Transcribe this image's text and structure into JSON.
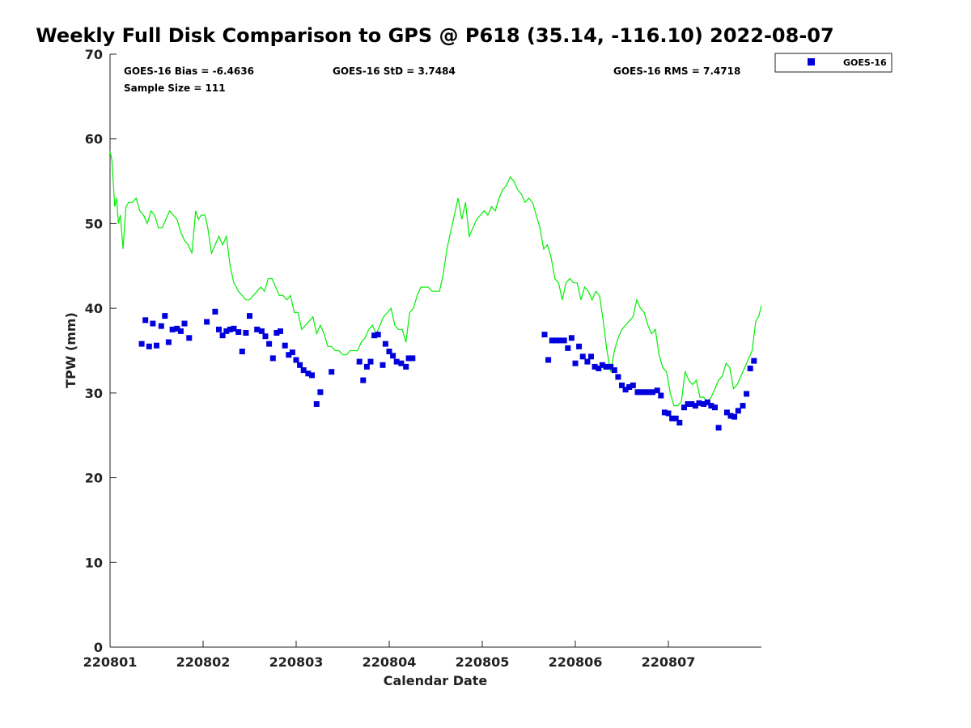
{
  "title": "Weekly Full Disk Comparison to GPS @ P618 (35.14, -116.10) 2022-08-07",
  "stats": {
    "bias": "GOES-16 Bias = -6.4636",
    "std": "GOES-16 StD = 3.7484",
    "rms": "GOES-16 RMS = 7.4718",
    "sample": "Sample Size = 111"
  },
  "legend": {
    "label": "GOES-16"
  },
  "colors": {
    "goes": "#0000dd",
    "gps": "#00ee00",
    "axis": "#222222"
  },
  "chart_data": {
    "type": "scatter",
    "xlabel": "Calendar Date",
    "ylabel": "TPW (mm)",
    "xlim": [
      0,
      7
    ],
    "ylim": [
      0,
      70
    ],
    "x_ticks": [
      {
        "value": 0,
        "label": "220801"
      },
      {
        "value": 1,
        "label": "220802"
      },
      {
        "value": 2,
        "label": "220803"
      },
      {
        "value": 3,
        "label": "220804"
      },
      {
        "value": 4,
        "label": "220805"
      },
      {
        "value": 5,
        "label": "220806"
      },
      {
        "value": 6,
        "label": "220807"
      }
    ],
    "y_ticks": [
      0,
      10,
      20,
      30,
      40,
      50,
      60,
      70
    ],
    "series": [
      {
        "name": "GOES-16",
        "marker": "square",
        "points": [
          [
            0.34,
            35.8
          ],
          [
            0.38,
            38.6
          ],
          [
            0.42,
            35.5
          ],
          [
            0.46,
            38.2
          ],
          [
            0.5,
            35.6
          ],
          [
            0.55,
            37.9
          ],
          [
            0.59,
            39.1
          ],
          [
            0.63,
            36.0
          ],
          [
            0.67,
            37.5
          ],
          [
            0.72,
            37.6
          ],
          [
            0.76,
            37.3
          ],
          [
            0.8,
            38.2
          ],
          [
            0.85,
            36.5
          ],
          [
            1.04,
            38.4
          ],
          [
            1.13,
            39.6
          ],
          [
            1.17,
            37.5
          ],
          [
            1.21,
            36.8
          ],
          [
            1.25,
            37.3
          ],
          [
            1.29,
            37.5
          ],
          [
            1.33,
            37.6
          ],
          [
            1.38,
            37.2
          ],
          [
            1.42,
            34.9
          ],
          [
            1.46,
            37.1
          ],
          [
            1.5,
            39.1
          ],
          [
            1.58,
            37.5
          ],
          [
            1.63,
            37.3
          ],
          [
            1.67,
            36.7
          ],
          [
            1.71,
            35.8
          ],
          [
            1.75,
            34.1
          ],
          [
            1.79,
            37.1
          ],
          [
            1.83,
            37.3
          ],
          [
            1.88,
            35.6
          ],
          [
            1.92,
            34.5
          ],
          [
            1.96,
            34.8
          ],
          [
            2.0,
            33.9
          ],
          [
            2.04,
            33.3
          ],
          [
            2.08,
            32.7
          ],
          [
            2.13,
            32.3
          ],
          [
            2.17,
            32.1
          ],
          [
            2.22,
            28.7
          ],
          [
            2.26,
            30.1
          ],
          [
            2.38,
            32.5
          ],
          [
            2.68,
            33.7
          ],
          [
            2.72,
            31.5
          ],
          [
            2.76,
            33.1
          ],
          [
            2.8,
            33.7
          ],
          [
            2.84,
            36.8
          ],
          [
            2.88,
            36.9
          ],
          [
            2.93,
            33.3
          ],
          [
            2.96,
            35.8
          ],
          [
            3.0,
            34.9
          ],
          [
            3.04,
            34.4
          ],
          [
            3.08,
            33.7
          ],
          [
            3.13,
            33.5
          ],
          [
            3.18,
            33.1
          ],
          [
            3.21,
            34.1
          ],
          [
            3.25,
            34.1
          ],
          [
            4.67,
            36.9
          ],
          [
            4.71,
            33.9
          ],
          [
            4.75,
            36.2
          ],
          [
            4.79,
            36.2
          ],
          [
            4.83,
            36.2
          ],
          [
            4.88,
            36.2
          ],
          [
            4.92,
            35.3
          ],
          [
            4.96,
            36.5
          ],
          [
            5.0,
            33.5
          ],
          [
            5.04,
            35.5
          ],
          [
            5.08,
            34.3
          ],
          [
            5.13,
            33.7
          ],
          [
            5.17,
            34.3
          ],
          [
            5.21,
            33.1
          ],
          [
            5.25,
            32.9
          ],
          [
            5.29,
            33.3
          ],
          [
            5.33,
            33.1
          ],
          [
            5.38,
            33.1
          ],
          [
            5.42,
            32.7
          ],
          [
            5.46,
            31.9
          ],
          [
            5.5,
            30.9
          ],
          [
            5.54,
            30.4
          ],
          [
            5.58,
            30.7
          ],
          [
            5.62,
            30.9
          ],
          [
            5.67,
            30.1
          ],
          [
            5.71,
            30.1
          ],
          [
            5.75,
            30.1
          ],
          [
            5.79,
            30.1
          ],
          [
            5.83,
            30.1
          ],
          [
            5.88,
            30.3
          ],
          [
            5.92,
            29.7
          ],
          [
            5.96,
            27.7
          ],
          [
            6.0,
            27.6
          ],
          [
            6.04,
            27.0
          ],
          [
            6.08,
            27.0
          ],
          [
            6.12,
            26.5
          ],
          [
            6.17,
            28.3
          ],
          [
            6.21,
            28.7
          ],
          [
            6.25,
            28.7
          ],
          [
            6.29,
            28.5
          ],
          [
            6.33,
            28.8
          ],
          [
            6.38,
            28.7
          ],
          [
            6.42,
            28.9
          ],
          [
            6.46,
            28.5
          ],
          [
            6.5,
            28.3
          ],
          [
            6.54,
            25.9
          ],
          [
            6.63,
            27.7
          ],
          [
            6.67,
            27.3
          ],
          [
            6.71,
            27.2
          ],
          [
            6.75,
            27.9
          ],
          [
            6.8,
            28.5
          ],
          [
            6.84,
            29.9
          ],
          [
            6.88,
            32.9
          ],
          [
            6.92,
            33.8
          ]
        ]
      },
      {
        "name": "GPS",
        "marker": "line",
        "points": [
          [
            0.0,
            58.5
          ],
          [
            0.02,
            57.5
          ],
          [
            0.05,
            52.0
          ],
          [
            0.07,
            53.0
          ],
          [
            0.09,
            50.0
          ],
          [
            0.11,
            51.0
          ],
          [
            0.14,
            47.0
          ],
          [
            0.17,
            52.0
          ],
          [
            0.2,
            52.5
          ],
          [
            0.24,
            52.5
          ],
          [
            0.28,
            53.0
          ],
          [
            0.32,
            51.5
          ],
          [
            0.36,
            51.0
          ],
          [
            0.4,
            50.0
          ],
          [
            0.44,
            51.5
          ],
          [
            0.48,
            51.0
          ],
          [
            0.52,
            49.5
          ],
          [
            0.56,
            49.5
          ],
          [
            0.6,
            50.5
          ],
          [
            0.64,
            51.5
          ],
          [
            0.68,
            51.0
          ],
          [
            0.72,
            50.5
          ],
          [
            0.76,
            49.0
          ],
          [
            0.8,
            48.0
          ],
          [
            0.84,
            47.5
          ],
          [
            0.88,
            46.5
          ],
          [
            0.92,
            51.5
          ],
          [
            0.95,
            50.5
          ],
          [
            0.98,
            51.0
          ],
          [
            1.02,
            51.0
          ],
          [
            1.05,
            49.5
          ],
          [
            1.09,
            46.5
          ],
          [
            1.13,
            47.5
          ],
          [
            1.17,
            48.5
          ],
          [
            1.21,
            47.5
          ],
          [
            1.25,
            48.5
          ],
          [
            1.29,
            45.0
          ],
          [
            1.33,
            43.0
          ],
          [
            1.38,
            42.0
          ],
          [
            1.42,
            41.5
          ],
          [
            1.46,
            41.0
          ],
          [
            1.5,
            41.0
          ],
          [
            1.54,
            41.5
          ],
          [
            1.58,
            42.0
          ],
          [
            1.62,
            42.5
          ],
          [
            1.66,
            42.0
          ],
          [
            1.7,
            43.5
          ],
          [
            1.74,
            43.5
          ],
          [
            1.78,
            42.5
          ],
          [
            1.82,
            41.5
          ],
          [
            1.86,
            41.5
          ],
          [
            1.9,
            41.0
          ],
          [
            1.94,
            41.5
          ],
          [
            1.98,
            39.5
          ],
          [
            2.02,
            39.5
          ],
          [
            2.06,
            37.5
          ],
          [
            2.1,
            38.0
          ],
          [
            2.14,
            38.5
          ],
          [
            2.18,
            39.0
          ],
          [
            2.22,
            37.0
          ],
          [
            2.26,
            38.0
          ],
          [
            2.3,
            37.0
          ],
          [
            2.34,
            35.5
          ],
          [
            2.38,
            35.5
          ],
          [
            2.42,
            35.0
          ],
          [
            2.46,
            35.0
          ],
          [
            2.5,
            34.5
          ],
          [
            2.54,
            34.5
          ],
          [
            2.58,
            35.0
          ],
          [
            2.62,
            35.0
          ],
          [
            2.66,
            35.0
          ],
          [
            2.7,
            36.0
          ],
          [
            2.74,
            36.5
          ],
          [
            2.78,
            37.5
          ],
          [
            2.82,
            38.0
          ],
          [
            2.86,
            37.0
          ],
          [
            2.9,
            38.0
          ],
          [
            2.94,
            39.0
          ],
          [
            2.98,
            39.5
          ],
          [
            3.02,
            40.0
          ],
          [
            3.06,
            38.0
          ],
          [
            3.1,
            37.5
          ],
          [
            3.14,
            37.5
          ],
          [
            3.18,
            36.0
          ],
          [
            3.22,
            39.5
          ],
          [
            3.26,
            40.0
          ],
          [
            3.3,
            41.5
          ],
          [
            3.34,
            42.5
          ],
          [
            3.38,
            42.5
          ],
          [
            3.42,
            42.5
          ],
          [
            3.46,
            42.0
          ],
          [
            3.5,
            42.0
          ],
          [
            3.54,
            42.0
          ],
          [
            3.58,
            44.0
          ],
          [
            3.62,
            47.0
          ],
          [
            3.66,
            49.0
          ],
          [
            3.7,
            51.0
          ],
          [
            3.74,
            53.0
          ],
          [
            3.78,
            50.5
          ],
          [
            3.82,
            52.5
          ],
          [
            3.86,
            48.5
          ],
          [
            3.9,
            49.5
          ],
          [
            3.94,
            50.5
          ],
          [
            3.98,
            51.0
          ],
          [
            4.02,
            51.5
          ],
          [
            4.06,
            51.0
          ],
          [
            4.1,
            52.0
          ],
          [
            4.14,
            51.5
          ],
          [
            4.18,
            53.0
          ],
          [
            4.22,
            54.0
          ],
          [
            4.26,
            54.5
          ],
          [
            4.3,
            55.5
          ],
          [
            4.34,
            55.0
          ],
          [
            4.38,
            54.0
          ],
          [
            4.42,
            53.5
          ],
          [
            4.46,
            52.5
          ],
          [
            4.5,
            53.0
          ],
          [
            4.54,
            52.5
          ],
          [
            4.58,
            51.0
          ],
          [
            4.62,
            49.5
          ],
          [
            4.66,
            47.0
          ],
          [
            4.7,
            47.5
          ],
          [
            4.74,
            46.0
          ],
          [
            4.78,
            43.5
          ],
          [
            4.82,
            43.0
          ],
          [
            4.86,
            41.0
          ],
          [
            4.9,
            43.0
          ],
          [
            4.94,
            43.5
          ],
          [
            4.98,
            43.0
          ],
          [
            5.02,
            43.0
          ],
          [
            5.06,
            41.0
          ],
          [
            5.1,
            42.5
          ],
          [
            5.14,
            42.0
          ],
          [
            5.18,
            41.0
          ],
          [
            5.22,
            42.0
          ],
          [
            5.26,
            41.5
          ],
          [
            5.3,
            38.5
          ],
          [
            5.34,
            35.0
          ],
          [
            5.38,
            32.5
          ],
          [
            5.42,
            35.0
          ],
          [
            5.46,
            36.5
          ],
          [
            5.5,
            37.5
          ],
          [
            5.54,
            38.0
          ],
          [
            5.58,
            38.5
          ],
          [
            5.62,
            39.0
          ],
          [
            5.66,
            41.0
          ],
          [
            5.7,
            40.0
          ],
          [
            5.74,
            39.5
          ],
          [
            5.78,
            38.0
          ],
          [
            5.82,
            37.0
          ],
          [
            5.86,
            37.5
          ],
          [
            5.9,
            34.5
          ],
          [
            5.94,
            33.0
          ],
          [
            5.98,
            32.5
          ],
          [
            6.02,
            30.0
          ],
          [
            6.06,
            28.5
          ],
          [
            6.1,
            28.5
          ],
          [
            6.14,
            29.0
          ],
          [
            6.18,
            32.5
          ],
          [
            6.22,
            31.5
          ],
          [
            6.26,
            31.0
          ],
          [
            6.3,
            31.5
          ],
          [
            6.34,
            29.5
          ],
          [
            6.38,
            29.5
          ],
          [
            6.42,
            29.0
          ],
          [
            6.46,
            29.5
          ],
          [
            6.5,
            30.5
          ],
          [
            6.54,
            31.5
          ],
          [
            6.58,
            32.0
          ],
          [
            6.62,
            33.5
          ],
          [
            6.66,
            33.0
          ],
          [
            6.7,
            30.5
          ],
          [
            6.74,
            31.0
          ],
          [
            6.78,
            32.0
          ],
          [
            6.82,
            33.0
          ],
          [
            6.86,
            34.0
          ],
          [
            6.9,
            35.0
          ],
          [
            6.94,
            38.5
          ],
          [
            6.97,
            39.0
          ],
          [
            7.0,
            40.3
          ]
        ]
      }
    ],
    "legend_placement": "top-right",
    "grid": false
  }
}
